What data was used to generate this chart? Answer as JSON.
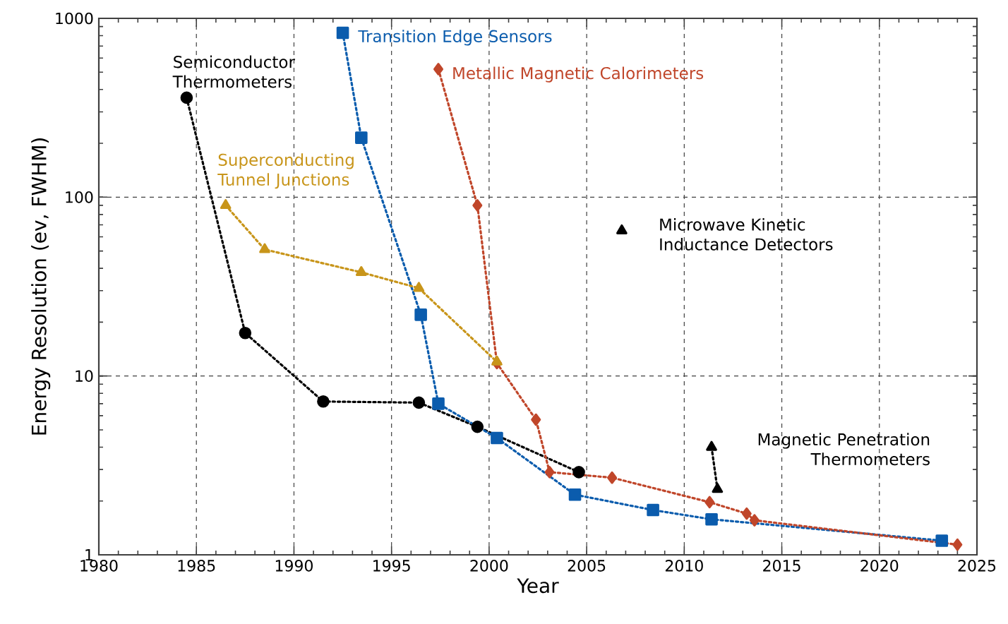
{
  "chart_data": {
    "type": "line",
    "xlabel": "Year",
    "ylabel": "Energy Resolution (ev, FWHM)",
    "xlim": [
      1980,
      2025
    ],
    "ylim": [
      1,
      1000
    ],
    "xticks": [
      1980,
      1985,
      1990,
      1995,
      2000,
      2005,
      2010,
      2015,
      2020,
      2025
    ],
    "yticks": [
      1,
      10,
      100,
      1000
    ],
    "log": "y",
    "grid": true,
    "legend": false,
    "line_style": "dotted",
    "series": [
      {
        "name": "Semiconductor Thermometers",
        "color": "#000000",
        "marker": "circle",
        "x": [
          1984.5,
          1987.5,
          1991.5,
          1996.4,
          1999.4,
          2004.6
        ],
        "values": [
          360,
          17.4,
          7.2,
          7.1,
          5.2,
          2.9
        ]
      },
      {
        "name": "Transition Edge Sensors",
        "color": "#0b5cad",
        "marker": "square",
        "x": [
          1992.5,
          1993.45,
          1996.5,
          1997.4,
          2000.4,
          2004.4,
          2008.4,
          2011.4,
          2023.2
        ],
        "values": [
          830,
          215,
          22,
          7.0,
          4.5,
          2.17,
          1.78,
          1.58,
          1.2
        ]
      },
      {
        "name": "Metallic Magnetic Calorimeters",
        "color": "#c0462a",
        "marker": "diamond",
        "x": [
          1997.4,
          1999.4,
          2000.4,
          2002.4,
          2003.1,
          2006.3,
          2011.3,
          2013.2,
          2013.6,
          2024.0
        ],
        "values": [
          520,
          90,
          11.8,
          5.7,
          2.9,
          2.7,
          1.97,
          1.7,
          1.56,
          1.14
        ]
      },
      {
        "name": "Superconducting Tunnel Junctions",
        "color": "#c8951a",
        "marker": "triangle",
        "x": [
          1986.5,
          1988.5,
          1993.45,
          1996.4,
          2000.4
        ],
        "values": [
          90,
          51,
          38,
          31,
          12
        ]
      },
      {
        "name": "Microwave Kinetic Inductance Detectors",
        "color": "#000000",
        "marker": "triangle",
        "x": [
          2006.8
        ],
        "values": [
          65
        ]
      },
      {
        "name": "Magnetic Penetration Thermometers",
        "color": "#000000",
        "marker": "triangle",
        "x": [
          2011.4,
          2011.7
        ],
        "values": [
          4.0,
          2.33
        ]
      }
    ]
  }
}
